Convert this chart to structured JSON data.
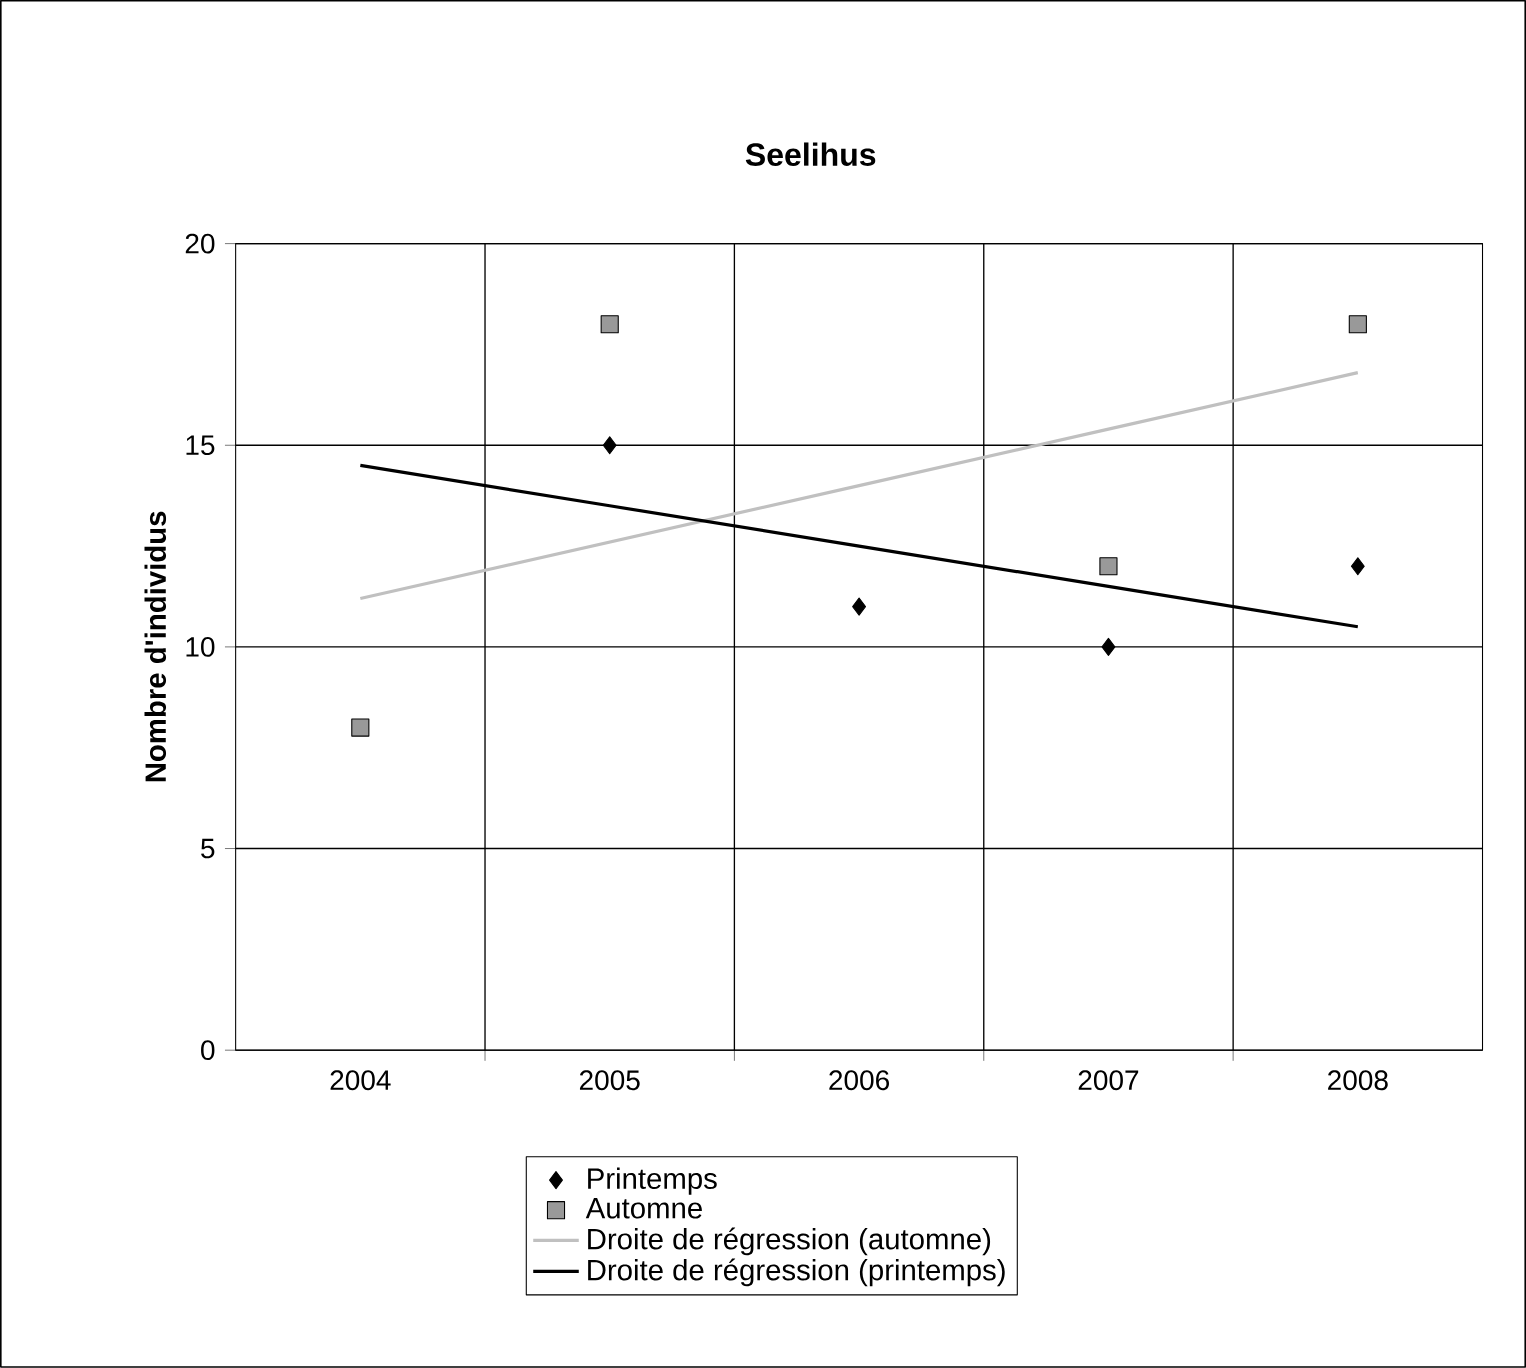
{
  "chart_data": {
    "type": "scatter",
    "title": "Seelihus",
    "ylabel": "Nombre d'individus",
    "categories": [
      "2004",
      "2005",
      "2006",
      "2007",
      "2008"
    ],
    "series": [
      {
        "name": "Printemps",
        "marker": "diamond",
        "color": "#000000",
        "values": [
          null,
          15,
          11,
          10,
          12
        ]
      },
      {
        "name": "Automne",
        "marker": "square",
        "color": "#999999",
        "values": [
          8,
          18,
          null,
          12,
          18
        ]
      },
      {
        "name": "Droite de régression  (automne)",
        "type": "line",
        "marker": "none",
        "color": "#c0c0c0",
        "values": [
          11.2,
          12.6,
          14,
          15.4,
          16.8
        ]
      },
      {
        "name": "Droite de régression (printemps)",
        "type": "line",
        "marker": "none",
        "color": "#000000",
        "values": [
          14.5,
          13.5,
          12.5,
          11.5,
          10.5
        ]
      }
    ],
    "ylim": [
      0,
      20
    ],
    "yticks": [
      0,
      5,
      10,
      15,
      20
    ],
    "grid": true,
    "legend": "bottom"
  }
}
